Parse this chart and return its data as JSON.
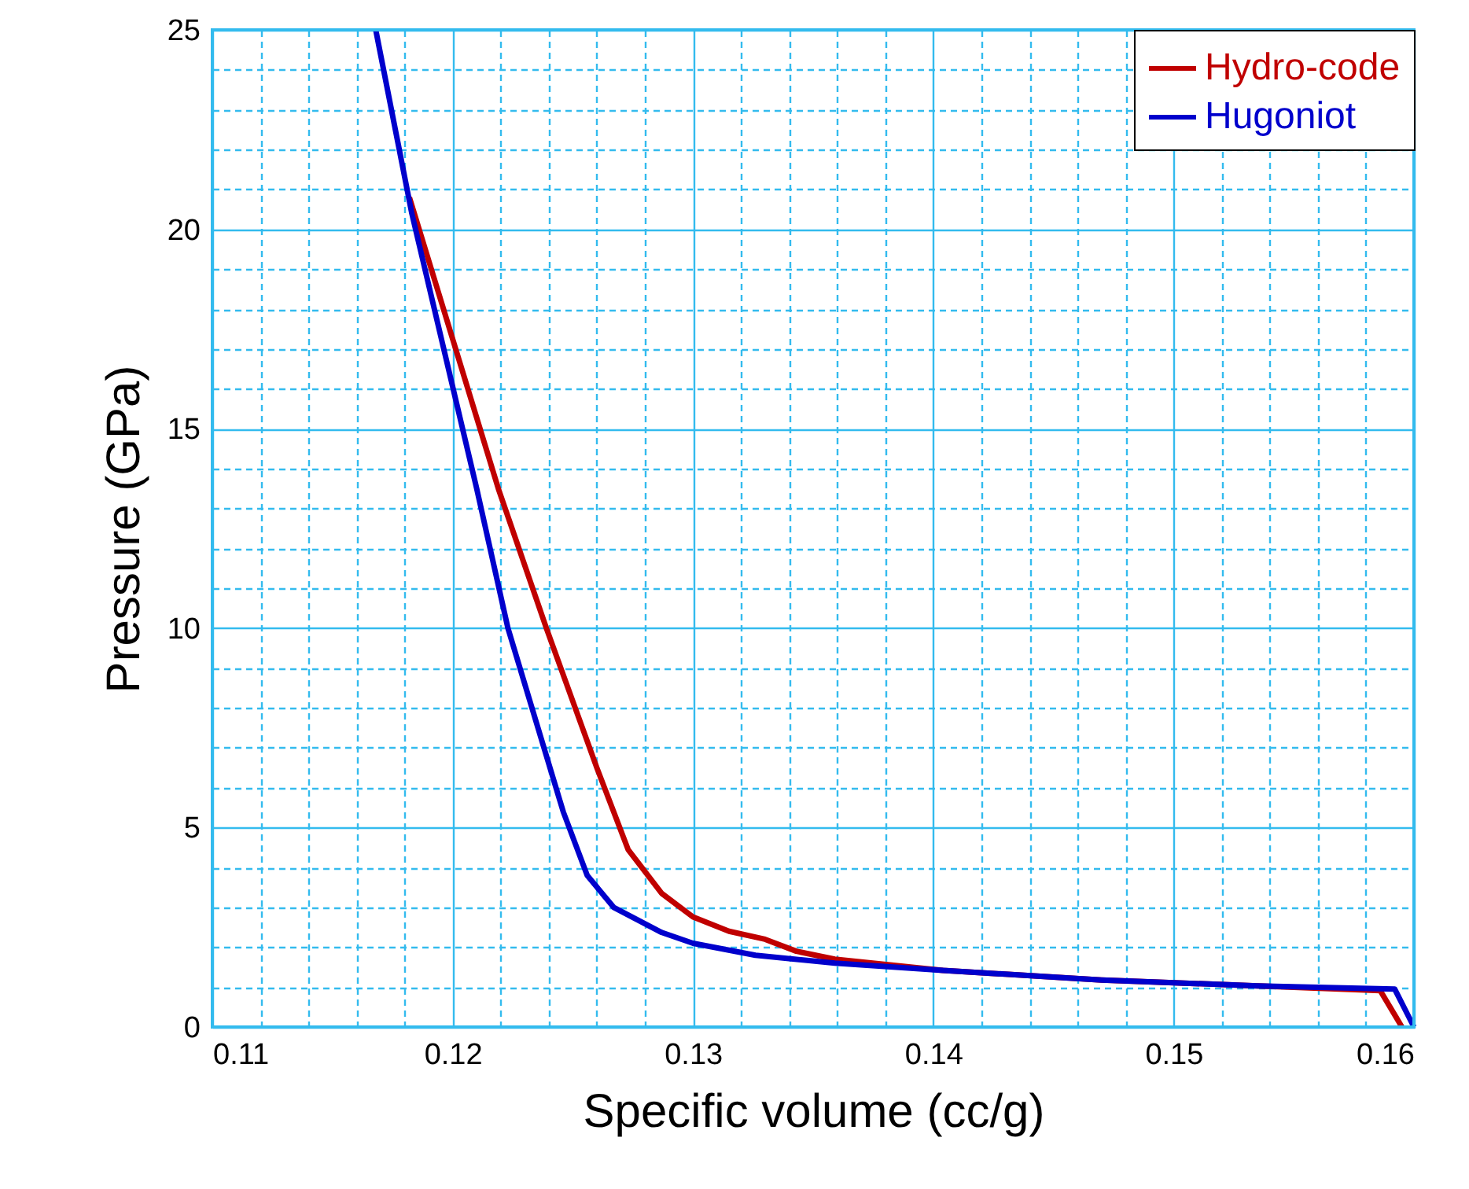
{
  "chart_data": {
    "type": "line",
    "xlabel": "Specific volume (cc/g)",
    "ylabel": "Pressure (GPa)",
    "xlim": [
      0.11,
      0.16
    ],
    "ylim": [
      0,
      25
    ],
    "xticks": [
      0.11,
      {
        "value": 0.112,
        "label": null
      },
      {
        "value": 0.114,
        "label": null
      },
      {
        "value": 0.116,
        "label": null
      },
      {
        "value": 0.118,
        "label": null
      },
      0.12,
      {
        "value": 0.122,
        "label": null
      },
      {
        "value": 0.124,
        "label": null
      },
      {
        "value": 0.126,
        "label": null
      },
      {
        "value": 0.128,
        "label": null
      },
      0.13,
      {
        "value": 0.132,
        "label": null
      },
      {
        "value": 0.134,
        "label": null
      },
      {
        "value": 0.136,
        "label": null
      },
      {
        "value": 0.138,
        "label": null
      },
      0.14,
      {
        "value": 0.142,
        "label": null
      },
      {
        "value": 0.144,
        "label": null
      },
      {
        "value": 0.146,
        "label": null
      },
      {
        "value": 0.148,
        "label": null
      },
      0.15,
      {
        "value": 0.152,
        "label": null
      },
      {
        "value": 0.154,
        "label": null
      },
      {
        "value": 0.156,
        "label": null
      },
      {
        "value": 0.158,
        "label": null
      },
      0.16
    ],
    "yticks": [
      0,
      {
        "value": 1,
        "label": null
      },
      {
        "value": 2,
        "label": null
      },
      {
        "value": 3,
        "label": null
      },
      {
        "value": 4,
        "label": null
      },
      5,
      {
        "value": 6,
        "label": null
      },
      {
        "value": 7,
        "label": null
      },
      {
        "value": 8,
        "label": null
      },
      {
        "value": 9,
        "label": null
      },
      10,
      {
        "value": 11,
        "label": null
      },
      {
        "value": 12,
        "label": null
      },
      {
        "value": 13,
        "label": null
      },
      {
        "value": 14,
        "label": null
      },
      15,
      {
        "value": 16,
        "label": null
      },
      {
        "value": 17,
        "label": null
      },
      {
        "value": 18,
        "label": null
      },
      {
        "value": 19,
        "label": null
      },
      20,
      {
        "value": 21,
        "label": null
      },
      {
        "value": 22,
        "label": null
      },
      {
        "value": 23,
        "label": null
      },
      {
        "value": 24,
        "label": null
      },
      25
    ],
    "grid": true,
    "legend": "top right",
    "line_style": "solid",
    "marker": "none",
    "series": [
      {
        "name": "Hydro-code",
        "color": "#c00000",
        "x": [
          0.1182,
          0.1219,
          0.1239,
          0.126,
          0.1273,
          0.1287,
          0.13,
          0.1315,
          0.133,
          0.1343,
          0.1359,
          0.1404,
          0.147,
          0.1535,
          0.1586,
          0.1595
        ],
        "values": [
          20.8,
          13.5,
          10.0,
          6.5,
          4.45,
          3.35,
          2.76,
          2.4,
          2.2,
          1.9,
          1.7,
          1.42,
          1.18,
          1.03,
          0.91,
          0
        ]
      },
      {
        "name": "Hugoniot",
        "color": "#0000cc",
        "x": [
          0.1168,
          0.1183,
          0.121,
          0.1223,
          0.1246,
          0.1256,
          0.1267,
          0.1287,
          0.13,
          0.1326,
          0.1359,
          0.1404,
          0.147,
          0.1535,
          0.1592,
          0.16
        ],
        "values": [
          25,
          20.4,
          13.5,
          10.0,
          5.4,
          3.8,
          3.0,
          2.37,
          2.1,
          1.8,
          1.6,
          1.42,
          1.18,
          1.03,
          0.95,
          0
        ]
      }
    ]
  }
}
